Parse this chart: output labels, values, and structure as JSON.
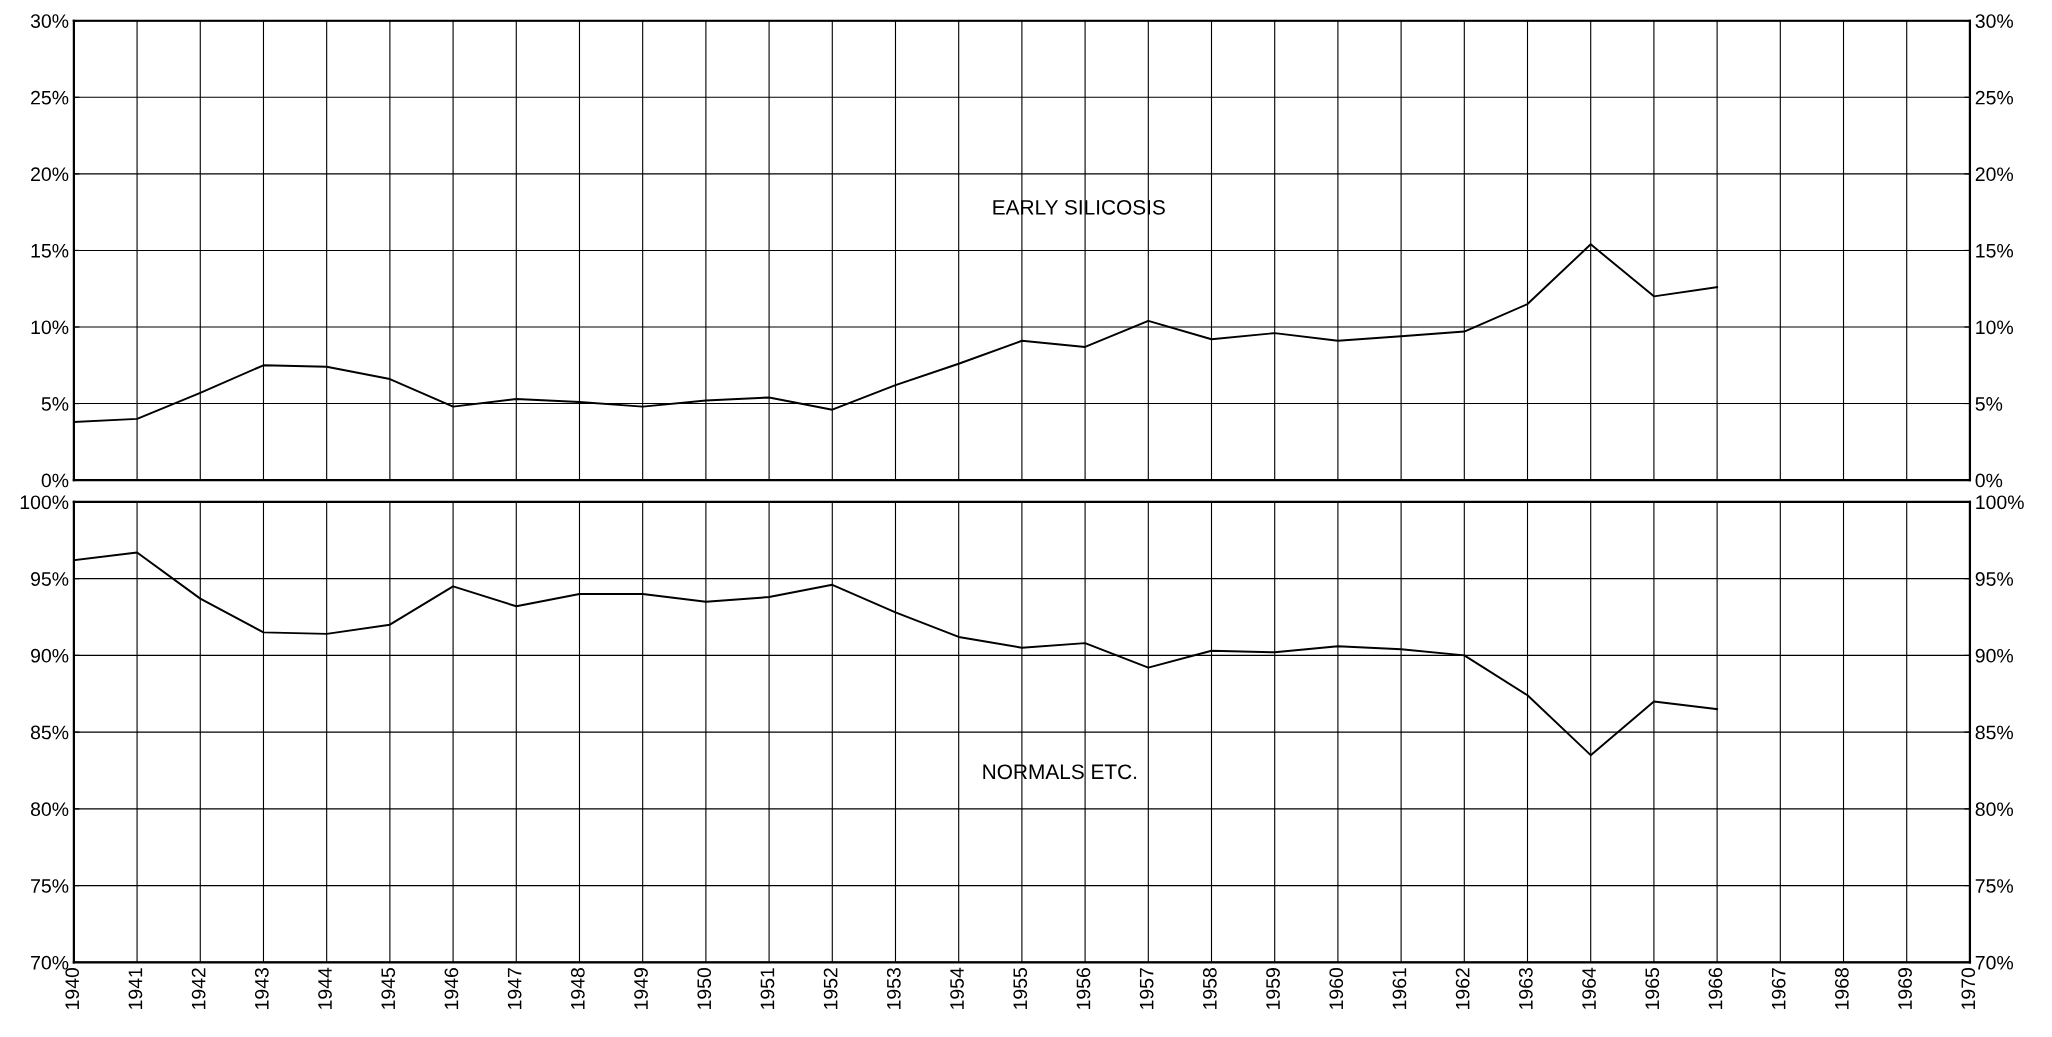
{
  "chart_data": [
    {
      "type": "line",
      "x": [
        1940,
        1941,
        1942,
        1943,
        1944,
        1945,
        1946,
        1947,
        1948,
        1949,
        1950,
        1951,
        1952,
        1953,
        1954,
        1955,
        1956,
        1957,
        1958,
        1959,
        1960,
        1961,
        1962,
        1963,
        1964,
        1965,
        1966
      ],
      "series": [
        {
          "name": "EARLY SILICOSIS",
          "color": "#000000",
          "values": [
            3.8,
            4.0,
            5.7,
            7.5,
            7.4,
            6.6,
            4.8,
            5.3,
            5.1,
            4.8,
            5.2,
            5.4,
            4.6,
            6.2,
            7.6,
            9.1,
            8.7,
            10.4,
            9.2,
            9.6,
            9.1,
            9.4,
            9.7,
            11.5,
            15.4,
            12.0,
            12.6
          ]
        }
      ],
      "xlim": [
        1940,
        1970
      ],
      "xticks": [
        1940,
        1941,
        1942,
        1943,
        1944,
        1945,
        1946,
        1947,
        1948,
        1949,
        1950,
        1951,
        1952,
        1953,
        1954,
        1955,
        1956,
        1957,
        1958,
        1959,
        1960,
        1961,
        1962,
        1963,
        1964,
        1965,
        1966,
        1967,
        1968,
        1969,
        1970
      ],
      "ylim": [
        0,
        30
      ],
      "yticks": [
        {
          "value": 0,
          "label": "0%"
        },
        {
          "value": 5,
          "label": "5%"
        },
        {
          "value": 10,
          "label": "10%"
        },
        {
          "value": 15,
          "label": "15%"
        },
        {
          "value": 20,
          "label": "20%"
        },
        {
          "value": 25,
          "label": "25%"
        },
        {
          "value": 30,
          "label": "30%"
        }
      ],
      "y2lim": [
        0,
        30
      ],
      "y2ticks": [
        {
          "value": 0,
          "label": "0%"
        },
        {
          "value": 5,
          "label": "5%"
        },
        {
          "value": 10,
          "label": "10%"
        },
        {
          "value": 15,
          "label": "15%"
        },
        {
          "value": 20,
          "label": "20%"
        },
        {
          "value": 25,
          "label": "25%"
        },
        {
          "value": 30,
          "label": "30%"
        }
      ],
      "tick_labels": "y",
      "grid": true,
      "legend": false,
      "marker": "none",
      "line_style": "solid"
    },
    {
      "type": "line",
      "x": [
        1940,
        1941,
        1942,
        1943,
        1944,
        1945,
        1946,
        1947,
        1948,
        1949,
        1950,
        1951,
        1952,
        1953,
        1954,
        1955,
        1956,
        1957,
        1958,
        1959,
        1960,
        1961,
        1962,
        1963,
        1964,
        1965,
        1966
      ],
      "series": [
        {
          "name": "NORMALS ETC.",
          "color": "#000000",
          "values": [
            96.2,
            96.7,
            93.7,
            91.5,
            91.4,
            92.0,
            94.5,
            93.2,
            94.0,
            94.0,
            93.5,
            93.8,
            94.6,
            92.8,
            91.2,
            90.5,
            90.8,
            89.2,
            90.3,
            90.2,
            90.6,
            90.4,
            90.0,
            87.4,
            83.5,
            87.0,
            86.5
          ]
        }
      ],
      "xlim": [
        1940,
        1970
      ],
      "xticks": [
        1940,
        1941,
        1942,
        1943,
        1944,
        1945,
        1946,
        1947,
        1948,
        1949,
        1950,
        1951,
        1952,
        1953,
        1954,
        1955,
        1956,
        1957,
        1958,
        1959,
        1960,
        1961,
        1962,
        1963,
        1964,
        1965,
        1966,
        1967,
        1968,
        1969,
        1970
      ],
      "ylim": [
        70,
        100
      ],
      "yticks": [
        {
          "value": 70,
          "label": "70%"
        },
        {
          "value": 75,
          "label": "75%"
        },
        {
          "value": 80,
          "label": "80%"
        },
        {
          "value": 85,
          "label": "85%"
        },
        {
          "value": 90,
          "label": "90%"
        },
        {
          "value": 95,
          "label": "95%"
        },
        {
          "value": 100,
          "label": "100%"
        }
      ],
      "y2lim": [
        70,
        100
      ],
      "y2ticks": [
        {
          "value": 70,
          "label": "70%"
        },
        {
          "value": 75,
          "label": "75%"
        },
        {
          "value": 80,
          "label": "80%"
        },
        {
          "value": 85,
          "label": "85%"
        },
        {
          "value": 90,
          "label": "90%"
        },
        {
          "value": 95,
          "label": "95%"
        },
        {
          "value": 100,
          "label": "100%"
        }
      ],
      "grid": true,
      "legend": false,
      "marker": "none",
      "line_style": "solid"
    }
  ]
}
